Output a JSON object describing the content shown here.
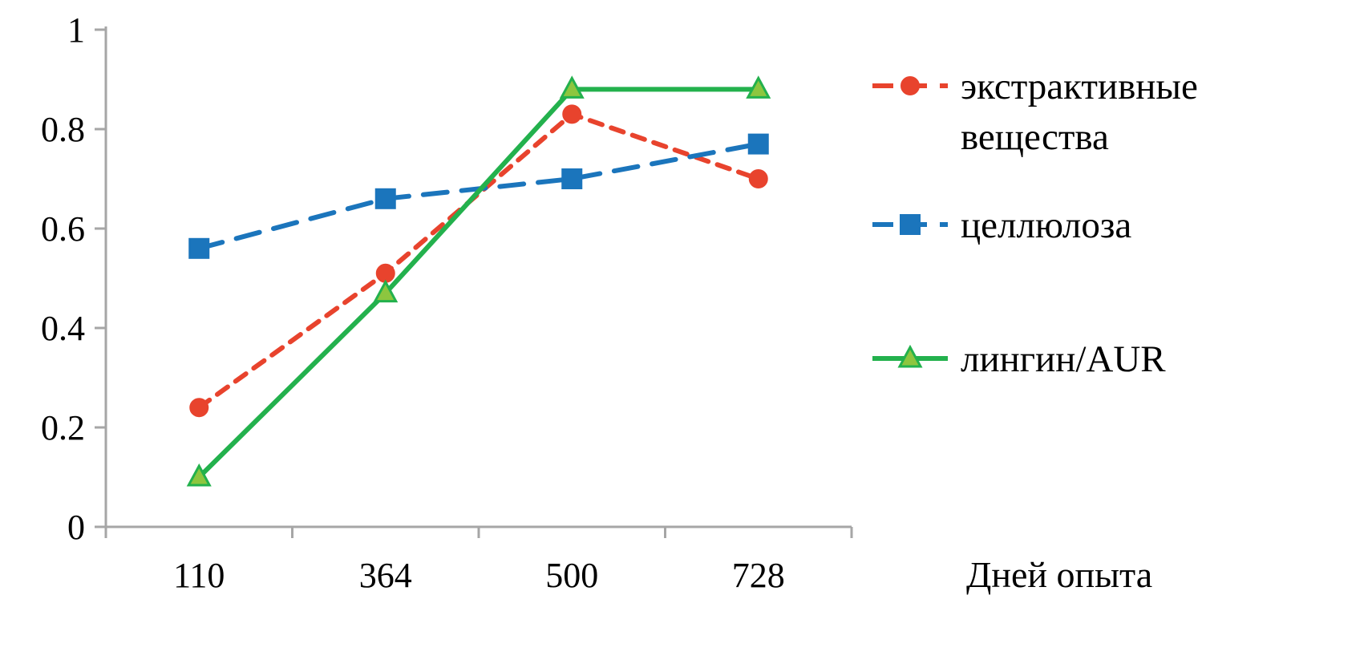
{
  "page": {
    "background": "#ffffff"
  },
  "chart_data": {
    "type": "line",
    "title": "",
    "xlabel": "Дней опыта",
    "ylabel": "",
    "categories": [
      "110",
      "364",
      "500",
      "728"
    ],
    "ylim": [
      0,
      1
    ],
    "yticks": [
      0,
      0.2,
      0.4,
      0.6,
      0.8,
      1
    ],
    "ytick_labels": [
      "0",
      "0.2",
      "0.4",
      "0.6",
      "0.8",
      "1"
    ],
    "grid": false,
    "legend_position": "right",
    "axis_color": "#a6a6a6",
    "text_color": "#000000",
    "series": [
      {
        "key": "extractives",
        "name": "экстрактивные вещества",
        "legend_lines": [
          "экстрактивные",
          "вещества"
        ],
        "color": "#e8432d",
        "marker": "circle",
        "marker_fill": "#e8432d",
        "line_style": "dashed",
        "dash": "16 12",
        "values": [
          0.24,
          0.51,
          0.83,
          0.7
        ]
      },
      {
        "key": "cellulose",
        "name": "целлюлоза",
        "legend_lines": [
          "целлюлоза"
        ],
        "color": "#1b75bc",
        "marker": "square",
        "marker_fill": "#1b75bc",
        "line_style": "dashed",
        "dash": "30 18",
        "values": [
          0.56,
          0.66,
          0.7,
          0.77
        ]
      },
      {
        "key": "lignin",
        "name": "лингин/AUR",
        "legend_lines": [
          "лингин/AUR"
        ],
        "color": "#23b14d",
        "marker": "triangle",
        "marker_fill": "#8dc63f",
        "line_style": "solid",
        "dash": "",
        "values": [
          0.1,
          0.47,
          0.88,
          0.88
        ]
      }
    ]
  }
}
